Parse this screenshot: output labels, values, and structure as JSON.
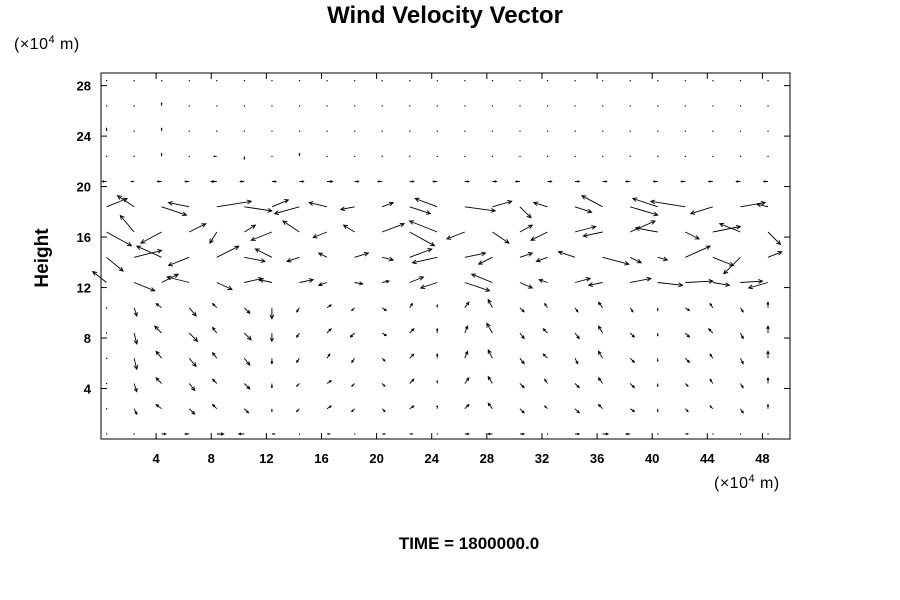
{
  "chart_data": {
    "type": "quiver",
    "title": "Wind Velocity Vector",
    "ylabel": "Height",
    "xlabel": "",
    "x_unit": {
      "prefix": "(×10",
      "exp": "4",
      "suffix": " m)"
    },
    "y_unit": {
      "prefix": "(×10",
      "exp": "4",
      "suffix": " m)"
    },
    "xlim": [
      0,
      50
    ],
    "ylim": [
      0,
      29
    ],
    "x_ticks": [
      4,
      8,
      12,
      16,
      20,
      24,
      28,
      32,
      36,
      40,
      44,
      48
    ],
    "y_ticks": [
      4,
      8,
      12,
      16,
      20,
      24,
      28
    ],
    "grid": false,
    "footer": "TIME = 1800000.0",
    "grid_x": [
      0.4,
      2.4,
      4.4,
      6.4,
      8.4,
      10.4,
      12.4,
      14.4,
      16.4,
      18.4,
      20.4,
      22.4,
      24.4,
      26.4,
      28.4,
      30.4,
      32.4,
      34.4,
      36.4,
      38.4,
      40.4,
      42.4,
      44.4,
      46.4,
      48.4
    ],
    "grid_y": [
      0.4,
      2.4,
      4.4,
      6.4,
      8.4,
      10.4,
      12.4,
      14.4,
      16.4,
      18.4,
      20.4,
      22.4,
      24.4,
      26.4,
      28.4
    ],
    "rows": [
      {
        "y": 28.4,
        "u": [
          0,
          0,
          0,
          0,
          0,
          0,
          0,
          0,
          0,
          0,
          0,
          0,
          0,
          0,
          0,
          0,
          0,
          0,
          0,
          0,
          0,
          0,
          0,
          0,
          0
        ],
        "w": [
          0,
          0,
          0,
          0,
          0,
          0,
          0,
          0,
          0,
          0,
          0,
          0,
          0,
          0,
          0,
          0,
          0,
          0,
          0,
          0,
          0,
          0,
          0,
          0,
          0
        ]
      },
      {
        "y": 26.4,
        "u": [
          0,
          0,
          0,
          0,
          0,
          0,
          0,
          0,
          0,
          0,
          0,
          0,
          0,
          0,
          0,
          0,
          0,
          0,
          0,
          0,
          0,
          0,
          0,
          0,
          0
        ],
        "w": [
          0,
          0,
          0.2,
          0,
          0,
          0,
          0,
          0,
          0,
          0,
          0,
          0,
          0,
          0,
          0,
          0,
          0,
          0,
          0,
          0,
          0,
          0,
          0,
          0,
          0
        ]
      },
      {
        "y": 24.4,
        "u": [
          0,
          0,
          0,
          0,
          0,
          0,
          0,
          0,
          0,
          0,
          0,
          0,
          0,
          0,
          0,
          0,
          0,
          0,
          0,
          0,
          0,
          0,
          0,
          0,
          0
        ],
        "w": [
          0.2,
          0,
          0.2,
          0,
          0,
          0,
          0,
          0,
          0,
          0,
          0,
          0,
          0,
          0,
          0,
          0,
          0,
          0,
          0,
          0,
          0,
          0,
          0,
          0,
          0
        ]
      },
      {
        "y": 22.4,
        "u": [
          0,
          0,
          0,
          0,
          -0.2,
          0,
          0,
          0,
          0,
          0,
          0,
          0,
          0,
          0,
          0,
          0,
          0,
          0,
          0,
          0,
          0,
          0,
          0,
          0,
          0
        ],
        "w": [
          0,
          0,
          0.2,
          0,
          0,
          -0.2,
          0,
          0.2,
          0,
          0,
          0,
          0,
          0,
          0,
          0,
          0,
          0,
          0,
          0,
          0,
          0,
          0,
          0,
          0,
          0
        ]
      },
      {
        "y": 20.4,
        "u": [
          -0.3,
          -0.2,
          -0.3,
          -0.3,
          -0.4,
          -0.3,
          0.3,
          0.3,
          0.4,
          0.3,
          -0.3,
          0.3,
          -0.3,
          0.3,
          0.3,
          -0.3,
          0.3,
          0.3,
          0.3,
          -0.3,
          -0.3,
          -0.3,
          -0.3,
          -0.3,
          -0.3
        ],
        "w": [
          0,
          0,
          0,
          0,
          0,
          0,
          0,
          0,
          0,
          0,
          0,
          0,
          0,
          0,
          0,
          0,
          0,
          0,
          0,
          0,
          0,
          0,
          0,
          0,
          0
        ]
      },
      {
        "y": 18.4,
        "u": [
          1.5,
          -1.2,
          1.8,
          -1.5,
          2.5,
          2.0,
          1.2,
          -1.8,
          -1.3,
          -1.0,
          0.8,
          1.5,
          -1.6,
          2.2,
          1.4,
          0.8,
          -1.0,
          1.2,
          -1.5,
          2.0,
          -1.8,
          -2.5,
          -1.6,
          1.8,
          -0.8
        ],
        "w": [
          0.6,
          0.8,
          -0.6,
          0.3,
          0.4,
          -0.3,
          0.5,
          -0.5,
          0.3,
          -0.2,
          0.3,
          -0.5,
          0.6,
          -0.3,
          0.4,
          -0.8,
          0.3,
          -0.4,
          0.8,
          -0.6,
          0.6,
          0.4,
          -0.5,
          0.3,
          0.2
        ]
      },
      {
        "y": 16.4,
        "u": [
          1.8,
          -1.0,
          -1.5,
          1.2,
          -0.5,
          0.8,
          -1.5,
          -1.2,
          -1.0,
          -0.8,
          1.6,
          1.8,
          -2.0,
          -1.3,
          1.2,
          0.9,
          -1.2,
          1.5,
          -1.4,
          1.8,
          -1.6,
          1.0,
          2.0,
          -1.5,
          0.9
        ],
        "w": [
          -1.0,
          1.2,
          -0.8,
          0.6,
          -0.8,
          0.5,
          -0.6,
          0.8,
          -0.4,
          0.5,
          0.6,
          -1.0,
          0.8,
          -0.5,
          -0.8,
          0.5,
          -0.6,
          0.4,
          -0.3,
          0.8,
          0.3,
          -0.5,
          0.4,
          0.6,
          -0.9
        ]
      },
      {
        "y": 14.4,
        "u": [
          1.2,
          2.0,
          -1.8,
          -1.5,
          1.6,
          1.5,
          -1.2,
          -0.9,
          -0.6,
          1.0,
          0.8,
          1.6,
          -1.8,
          1.5,
          -1.0,
          0.9,
          -0.8,
          -1.2,
          1.9,
          0.8,
          0.7,
          1.8,
          1.5,
          -1.2,
          1.0
        ],
        "w": [
          -1.0,
          0.5,
          0.8,
          -0.6,
          0.8,
          -0.3,
          0.6,
          -0.3,
          0.3,
          0.3,
          -0.2,
          0.6,
          -0.4,
          0.3,
          -0.5,
          0.3,
          -0.3,
          0.4,
          -0.5,
          -0.4,
          -0.2,
          0.8,
          -0.6,
          -1.2,
          0.4
        ]
      },
      {
        "y": 12.4,
        "u": [
          -1.0,
          1.5,
          1.2,
          -1.6,
          1.1,
          1.3,
          -0.9,
          1.0,
          -0.6,
          0.6,
          0.5,
          1.0,
          -1.2,
          1.8,
          -1.5,
          0.9,
          -0.6,
          1.1,
          -1.0,
          1.5,
          1.8,
          2.0,
          1.2,
          1.6,
          -1.4
        ],
        "w": [
          0.8,
          -0.6,
          0.6,
          0.4,
          -0.5,
          0.3,
          0.2,
          0.2,
          -0.2,
          -0.1,
          0.1,
          0.4,
          -0.4,
          -0.6,
          0.6,
          -0.4,
          0.2,
          0.3,
          -0.2,
          0.3,
          -0.2,
          0.1,
          -0.2,
          0.1,
          -0.4
        ]
      },
      {
        "y": 10.4,
        "u": [
          0,
          0.2,
          -0.4,
          0.5,
          -0.3,
          0.4,
          0,
          -0.2,
          0.3,
          -0.2,
          0.3,
          0.2,
          0,
          0.3,
          -0.3,
          0.3,
          -0.2,
          0.2,
          -0.3,
          0.2,
          0,
          0.3,
          -0.2,
          0.2,
          0
        ],
        "w": [
          0,
          -0.6,
          0.3,
          -0.6,
          0.3,
          -0.4,
          -0.8,
          -0.3,
          0.2,
          -0.2,
          -0.2,
          0.3,
          0.2,
          0.4,
          0.6,
          -0.3,
          0.3,
          -0.3,
          0.4,
          -0.3,
          -0.2,
          -0.2,
          0.3,
          -0.3,
          0.4
        ]
      },
      {
        "y": 8.4,
        "u": [
          0,
          0.2,
          -0.5,
          0.6,
          -0.3,
          0.5,
          0,
          -0.2,
          0.3,
          -0.3,
          0.3,
          0.3,
          0,
          0.2,
          -0.4,
          0.3,
          -0.3,
          0.3,
          -0.3,
          0.3,
          0,
          0.3,
          -0.3,
          0.2,
          0
        ],
        "w": [
          0,
          -0.8,
          0.5,
          -0.6,
          0.4,
          -0.5,
          -0.6,
          -0.3,
          0.3,
          -0.3,
          -0.2,
          0.3,
          0.3,
          0.5,
          0.7,
          -0.4,
          0.3,
          -0.4,
          0.5,
          -0.3,
          -0.2,
          -0.3,
          0.3,
          -0.4,
          0.5
        ]
      },
      {
        "y": 6.4,
        "u": [
          0,
          0.2,
          -0.4,
          0.5,
          -0.3,
          0.4,
          0,
          -0.2,
          0.2,
          -0.2,
          0.2,
          0.3,
          0,
          0.2,
          -0.3,
          0.3,
          -0.3,
          0.2,
          -0.3,
          0.3,
          0,
          0.3,
          -0.2,
          0.2,
          0
        ],
        "w": [
          0,
          -0.8,
          0.5,
          -0.6,
          0.4,
          -0.5,
          -0.4,
          -0.3,
          0.3,
          -0.3,
          -0.2,
          0.3,
          0.3,
          0.5,
          0.6,
          -0.4,
          0.3,
          -0.4,
          0.5,
          -0.3,
          -0.2,
          -0.3,
          0.3,
          -0.4,
          0.5
        ]
      },
      {
        "y": 4.4,
        "u": [
          0,
          0.2,
          -0.4,
          0.4,
          -0.3,
          0.4,
          0,
          -0.2,
          0.3,
          -0.2,
          0.2,
          0.3,
          0,
          0.3,
          -0.3,
          0.3,
          -0.2,
          0.3,
          -0.3,
          0.3,
          0,
          0.2,
          -0.2,
          0.2,
          0
        ],
        "w": [
          0,
          -0.6,
          0.4,
          -0.5,
          0.3,
          -0.4,
          -0.3,
          -0.2,
          0.2,
          -0.2,
          -0.2,
          0.3,
          0.2,
          0.4,
          0.5,
          -0.3,
          0.3,
          -0.3,
          0.4,
          -0.3,
          -0.2,
          -0.2,
          0.3,
          -0.3,
          0.4
        ]
      },
      {
        "y": 2.4,
        "u": [
          0,
          0.2,
          -0.4,
          0.4,
          -0.3,
          0.3,
          0,
          -0.2,
          0.3,
          -0.2,
          0.2,
          0.3,
          0,
          0.3,
          -0.3,
          0.3,
          -0.2,
          0.3,
          -0.3,
          0.3,
          0,
          0.2,
          -0.2,
          0.2,
          0
        ],
        "w": [
          0,
          -0.4,
          0.3,
          -0.4,
          0.3,
          -0.3,
          -0.2,
          -0.2,
          0.2,
          -0.2,
          -0.2,
          0.2,
          0.2,
          0.3,
          0.4,
          -0.3,
          0.2,
          -0.3,
          0.3,
          -0.2,
          -0.2,
          -0.2,
          0.2,
          -0.3,
          0.3
        ]
      },
      {
        "y": 0.4,
        "u": [
          0,
          0,
          0.3,
          -0.3,
          0.5,
          -0.4,
          0.2,
          0,
          0.2,
          0,
          0.2,
          0.2,
          0,
          0.3,
          -0.3,
          0.3,
          0,
          0.3,
          0.4,
          -0.3,
          0,
          0.2,
          0,
          0,
          0
        ],
        "w": [
          0,
          0,
          0,
          0,
          0,
          0,
          0,
          0,
          0,
          0,
          0,
          0,
          0,
          0,
          0,
          0,
          0,
          0,
          0,
          0,
          0,
          0,
          0,
          0,
          0
        ]
      }
    ]
  }
}
